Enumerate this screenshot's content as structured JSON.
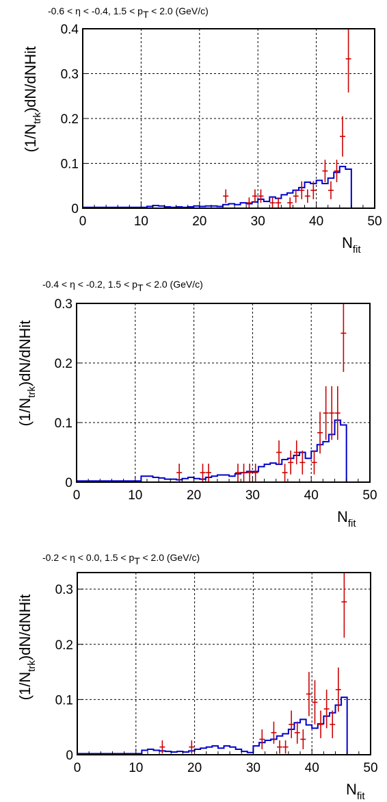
{
  "chart_data": [
    {
      "type": "histogram",
      "title": "-0.6 < η < -0.4, 1.5 < p",
      "title_sub": "T",
      "title_tail": " < 2.0 (GeV/c)",
      "xlabel": "N",
      "xlabel_sub": "fit",
      "ylabel_pre": "(1/N",
      "ylabel_sub": "trk",
      "ylabel_post": ")dN/dNHit",
      "xlim": [
        0,
        50
      ],
      "ylim": [
        0,
        0.4
      ],
      "x_ticks": [
        "0",
        "10",
        "20",
        "30",
        "40",
        "50"
      ],
      "y_ticks": [
        {
          "v": 0,
          "label": "0"
        },
        {
          "v": 0.1,
          "label": "0.1"
        },
        {
          "v": 0.2,
          "label": "0.2"
        },
        {
          "v": 0.3,
          "label": "0.3"
        },
        {
          "v": 0.4,
          "label": "0.4"
        }
      ],
      "grid": true,
      "colors": {
        "histogram": "#0000cc",
        "points": "#cc0000"
      },
      "histogram_bins": [
        [
          0,
          0.002
        ],
        [
          1,
          0.002
        ],
        [
          2,
          0.002
        ],
        [
          3,
          0.002
        ],
        [
          4,
          0.002
        ],
        [
          5,
          0.002
        ],
        [
          6,
          0.002
        ],
        [
          7,
          0.002
        ],
        [
          8,
          0.002
        ],
        [
          9,
          0.002
        ],
        [
          10,
          0.002
        ],
        [
          11,
          0.004
        ],
        [
          12,
          0.006
        ],
        [
          13,
          0.005
        ],
        [
          14,
          0.003
        ],
        [
          15,
          0.002
        ],
        [
          16,
          0.003
        ],
        [
          17,
          0.002
        ],
        [
          18,
          0.003
        ],
        [
          19,
          0.005
        ],
        [
          20,
          0.004
        ],
        [
          21,
          0.005
        ],
        [
          22,
          0.005
        ],
        [
          23,
          0.004
        ],
        [
          24,
          0.008
        ],
        [
          25,
          0.01
        ],
        [
          26,
          0.008
        ],
        [
          27,
          0.012
        ],
        [
          28,
          0.01
        ],
        [
          29,
          0.014
        ],
        [
          30,
          0.02
        ],
        [
          31,
          0.015
        ],
        [
          32,
          0.025
        ],
        [
          33,
          0.022
        ],
        [
          34,
          0.03
        ],
        [
          35,
          0.034
        ],
        [
          36,
          0.04
        ],
        [
          37,
          0.046
        ],
        [
          38,
          0.058
        ],
        [
          39,
          0.055
        ],
        [
          40,
          0.062
        ],
        [
          41,
          0.055
        ],
        [
          42,
          0.067
        ],
        [
          43,
          0.08
        ],
        [
          44,
          0.093
        ],
        [
          45,
          0.087
        ],
        [
          46,
          0.0
        ],
        [
          47,
          0.0
        ],
        [
          48,
          0.0
        ],
        [
          49,
          0.0
        ]
      ],
      "points": [
        {
          "x": 24.5,
          "y": 0.027,
          "err": 0.015
        },
        {
          "x": 28.5,
          "y": 0.012,
          "err": 0.012
        },
        {
          "x": 29.5,
          "y": 0.027,
          "err": 0.015
        },
        {
          "x": 30.5,
          "y": 0.027,
          "err": 0.015
        },
        {
          "x": 32.5,
          "y": 0.012,
          "err": 0.012
        },
        {
          "x": 33.5,
          "y": 0.012,
          "err": 0.012
        },
        {
          "x": 35.5,
          "y": 0.012,
          "err": 0.012
        },
        {
          "x": 36.5,
          "y": 0.027,
          "err": 0.015
        },
        {
          "x": 37.5,
          "y": 0.04,
          "err": 0.02
        },
        {
          "x": 38.5,
          "y": 0.027,
          "err": 0.015
        },
        {
          "x": 39.5,
          "y": 0.04,
          "err": 0.02
        },
        {
          "x": 41.5,
          "y": 0.083,
          "err": 0.025
        },
        {
          "x": 42.5,
          "y": 0.04,
          "err": 0.02
        },
        {
          "x": 43.5,
          "y": 0.083,
          "err": 0.025
        },
        {
          "x": 44.5,
          "y": 0.16,
          "err": 0.045
        },
        {
          "x": 45.5,
          "y": 0.333,
          "err": 0.075
        }
      ]
    },
    {
      "type": "histogram",
      "title": "-0.4 < η < -0.2, 1.5 < p",
      "title_sub": "T",
      "title_tail": " < 2.0 (GeV/c)",
      "xlabel": "N",
      "xlabel_sub": "fit",
      "ylabel_pre": "(1/N",
      "ylabel_sub": "trk",
      "ylabel_post": ")dN/dNHit",
      "xlim": [
        0,
        50
      ],
      "ylim": [
        0,
        0.3
      ],
      "x_ticks": [
        "0",
        "10",
        "20",
        "30",
        "40",
        "50"
      ],
      "y_ticks": [
        {
          "v": 0,
          "label": "0"
        },
        {
          "v": 0.1,
          "label": "0.1"
        },
        {
          "v": 0.2,
          "label": "0.2"
        },
        {
          "v": 0.3,
          "label": "0.3"
        }
      ],
      "grid": true,
      "colors": {
        "histogram": "#0000cc",
        "points": "#cc0000"
      },
      "histogram_bins": [
        [
          0,
          0.002
        ],
        [
          1,
          0.002
        ],
        [
          2,
          0.002
        ],
        [
          3,
          0.002
        ],
        [
          4,
          0.002
        ],
        [
          5,
          0.002
        ],
        [
          6,
          0.002
        ],
        [
          7,
          0.002
        ],
        [
          8,
          0.002
        ],
        [
          9,
          0.002
        ],
        [
          10,
          0.002
        ],
        [
          11,
          0.01
        ],
        [
          12,
          0.01
        ],
        [
          13,
          0.008
        ],
        [
          14,
          0.007
        ],
        [
          15,
          0.005
        ],
        [
          16,
          0.005
        ],
        [
          17,
          0.004
        ],
        [
          18,
          0.006
        ],
        [
          19,
          0.008
        ],
        [
          20,
          0.006
        ],
        [
          21,
          0.005
        ],
        [
          22,
          0.008
        ],
        [
          23,
          0.01
        ],
        [
          24,
          0.012
        ],
        [
          25,
          0.012
        ],
        [
          26,
          0.01
        ],
        [
          27,
          0.014
        ],
        [
          28,
          0.016
        ],
        [
          29,
          0.018
        ],
        [
          30,
          0.018
        ],
        [
          31,
          0.026
        ],
        [
          32,
          0.03
        ],
        [
          33,
          0.032
        ],
        [
          34,
          0.03
        ],
        [
          35,
          0.038
        ],
        [
          36,
          0.04
        ],
        [
          37,
          0.045
        ],
        [
          38,
          0.05
        ],
        [
          39,
          0.04
        ],
        [
          40,
          0.052
        ],
        [
          41,
          0.063
        ],
        [
          42,
          0.068
        ],
        [
          43,
          0.08
        ],
        [
          44,
          0.104
        ],
        [
          45,
          0.096
        ],
        [
          46,
          0.0
        ],
        [
          47,
          0.0
        ],
        [
          48,
          0.0
        ],
        [
          49,
          0.0
        ]
      ],
      "points": [
        {
          "x": 17.5,
          "y": 0.016,
          "err": 0.015
        },
        {
          "x": 21.5,
          "y": 0.016,
          "err": 0.015
        },
        {
          "x": 22.5,
          "y": 0.016,
          "err": 0.015
        },
        {
          "x": 27.5,
          "y": 0.016,
          "err": 0.015
        },
        {
          "x": 28.5,
          "y": 0.016,
          "err": 0.015
        },
        {
          "x": 29.5,
          "y": 0.016,
          "err": 0.015
        },
        {
          "x": 30.5,
          "y": 0.016,
          "err": 0.015
        },
        {
          "x": 34.5,
          "y": 0.05,
          "err": 0.02
        },
        {
          "x": 35.5,
          "y": 0.016,
          "err": 0.015
        },
        {
          "x": 36.5,
          "y": 0.033,
          "err": 0.02
        },
        {
          "x": 37.5,
          "y": 0.05,
          "err": 0.02
        },
        {
          "x": 38.5,
          "y": 0.033,
          "err": 0.02
        },
        {
          "x": 40.5,
          "y": 0.033,
          "err": 0.02
        },
        {
          "x": 41.5,
          "y": 0.083,
          "err": 0.035
        },
        {
          "x": 42.5,
          "y": 0.116,
          "err": 0.045
        },
        {
          "x": 43.5,
          "y": 0.116,
          "err": 0.045
        },
        {
          "x": 44.5,
          "y": 0.116,
          "err": 0.045
        },
        {
          "x": 45.5,
          "y": 0.25,
          "err": 0.065
        }
      ]
    },
    {
      "type": "histogram",
      "title": "-0.2 < η < 0.0, 1.5 < p",
      "title_sub": "T",
      "title_tail": " < 2.0 (GeV/c)",
      "xlabel": "N",
      "xlabel_sub": "fit",
      "ylabel_pre": "(1/N",
      "ylabel_sub": "trk",
      "ylabel_post": ")dN/dNHit",
      "xlim": [
        0,
        50
      ],
      "ylim": [
        0,
        0.33
      ],
      "x_ticks": [
        "0",
        "10",
        "20",
        "30",
        "40",
        "50"
      ],
      "y_ticks": [
        {
          "v": 0,
          "label": "0"
        },
        {
          "v": 0.1,
          "label": "0.1"
        },
        {
          "v": 0.2,
          "label": "0.2"
        },
        {
          "v": 0.3,
          "label": "0.3"
        }
      ],
      "grid": true,
      "colors": {
        "histogram": "#0000cc",
        "points": "#cc0000"
      },
      "histogram_bins": [
        [
          0,
          0.002
        ],
        [
          1,
          0.002
        ],
        [
          2,
          0.002
        ],
        [
          3,
          0.002
        ],
        [
          4,
          0.002
        ],
        [
          5,
          0.002
        ],
        [
          6,
          0.002
        ],
        [
          7,
          0.002
        ],
        [
          8,
          0.002
        ],
        [
          9,
          0.002
        ],
        [
          10,
          0.002
        ],
        [
          11,
          0.008
        ],
        [
          12,
          0.01
        ],
        [
          13,
          0.008
        ],
        [
          14,
          0.007
        ],
        [
          15,
          0.006
        ],
        [
          16,
          0.005
        ],
        [
          17,
          0.006
        ],
        [
          18,
          0.005
        ],
        [
          19,
          0.007
        ],
        [
          20,
          0.01
        ],
        [
          21,
          0.012
        ],
        [
          22,
          0.014
        ],
        [
          23,
          0.016
        ],
        [
          24,
          0.012
        ],
        [
          25,
          0.016
        ],
        [
          26,
          0.014
        ],
        [
          27,
          0.01
        ],
        [
          28,
          0.006
        ],
        [
          29,
          0.004
        ],
        [
          30,
          0.016
        ],
        [
          31,
          0.022
        ],
        [
          32,
          0.026
        ],
        [
          33,
          0.028
        ],
        [
          34,
          0.034
        ],
        [
          35,
          0.038
        ],
        [
          36,
          0.046
        ],
        [
          37,
          0.058
        ],
        [
          38,
          0.064
        ],
        [
          39,
          0.054
        ],
        [
          40,
          0.048
        ],
        [
          41,
          0.056
        ],
        [
          42,
          0.07
        ],
        [
          43,
          0.076
        ],
        [
          44,
          0.09
        ],
        [
          45,
          0.104
        ],
        [
          46,
          0.0
        ],
        [
          47,
          0.0
        ],
        [
          48,
          0.0
        ],
        [
          49,
          0.0
        ]
      ],
      "points": [
        {
          "x": 14.5,
          "y": 0.014,
          "err": 0.012
        },
        {
          "x": 19.5,
          "y": 0.014,
          "err": 0.012
        },
        {
          "x": 31.5,
          "y": 0.028,
          "err": 0.018
        },
        {
          "x": 33.5,
          "y": 0.04,
          "err": 0.02
        },
        {
          "x": 34.5,
          "y": 0.014,
          "err": 0.012
        },
        {
          "x": 35.5,
          "y": 0.014,
          "err": 0.012
        },
        {
          "x": 36.5,
          "y": 0.055,
          "err": 0.025
        },
        {
          "x": 37.5,
          "y": 0.04,
          "err": 0.02
        },
        {
          "x": 38.5,
          "y": 0.028,
          "err": 0.018
        },
        {
          "x": 39.5,
          "y": 0.11,
          "err": 0.04
        },
        {
          "x": 40.5,
          "y": 0.095,
          "err": 0.04
        },
        {
          "x": 41.5,
          "y": 0.055,
          "err": 0.025
        },
        {
          "x": 42.5,
          "y": 0.083,
          "err": 0.035
        },
        {
          "x": 43.5,
          "y": 0.055,
          "err": 0.025
        },
        {
          "x": 44.5,
          "y": 0.118,
          "err": 0.04
        },
        {
          "x": 45.5,
          "y": 0.277,
          "err": 0.065
        }
      ]
    }
  ]
}
